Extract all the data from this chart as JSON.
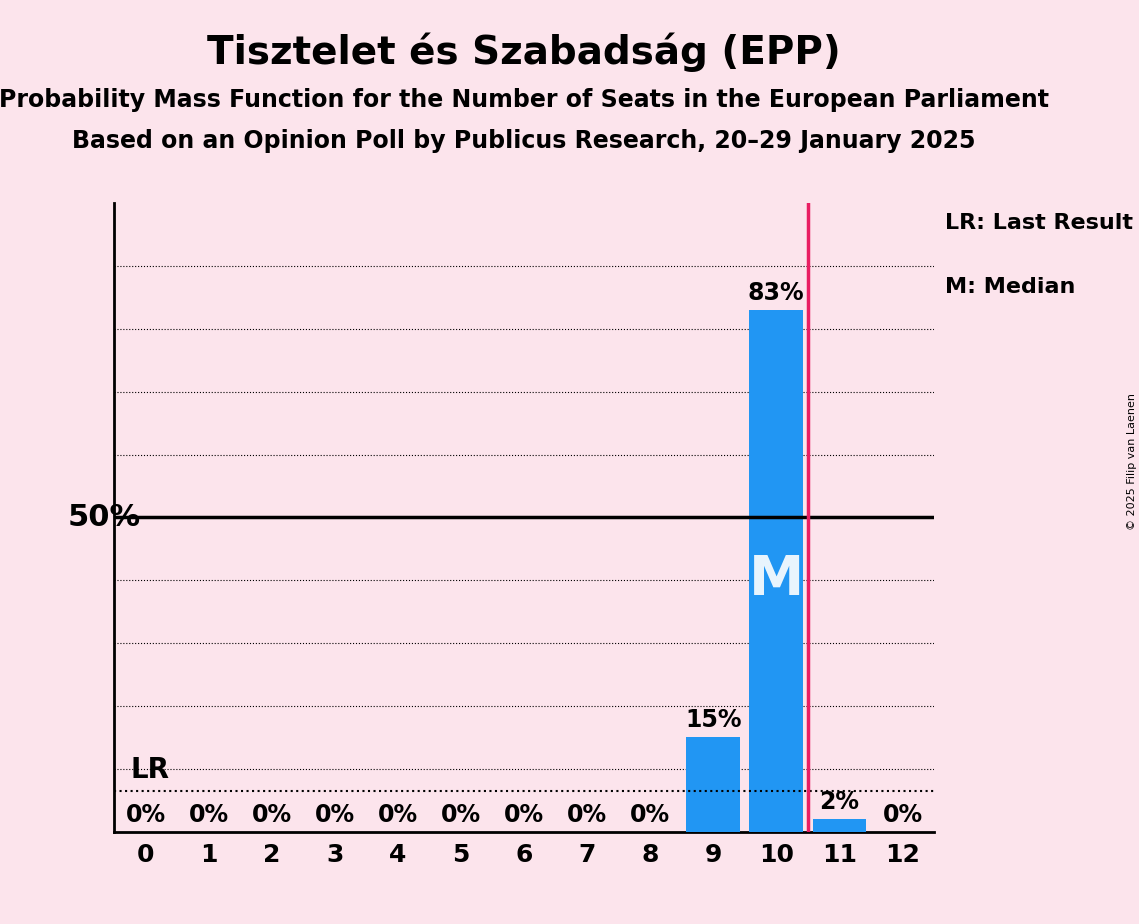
{
  "title": "Tisztelet és Szabadság (EPP)",
  "subtitle1": "Probability Mass Function for the Number of Seats in the European Parliament",
  "subtitle2": "Based on an Opinion Poll by Publicus Research, 20–29 January 2025",
  "copyright": "© 2025 Filip van Laenen",
  "x_values": [
    0,
    1,
    2,
    3,
    4,
    5,
    6,
    7,
    8,
    9,
    10,
    11,
    12
  ],
  "y_values": [
    0,
    0,
    0,
    0,
    0,
    0,
    0,
    0,
    0,
    15,
    83,
    2,
    0
  ],
  "bar_color": "#2196F3",
  "background_color": "#fce4ec",
  "last_result_x": 10.5,
  "median_x": 10,
  "lr_y": 6.5,
  "fifty_pct_y": 50,
  "ylabel_50": "50%",
  "lr_label": "LR",
  "median_label": "M",
  "lr_line_color": "#E91E63",
  "legend_lr": "LR: Last Result",
  "legend_m": "M: Median",
  "title_fontsize": 28,
  "subtitle_fontsize": 17,
  "tick_fontsize": 18,
  "bar_label_fontsize": 17,
  "ylim": [
    0,
    100
  ],
  "xlim": [
    -0.5,
    12.5
  ]
}
